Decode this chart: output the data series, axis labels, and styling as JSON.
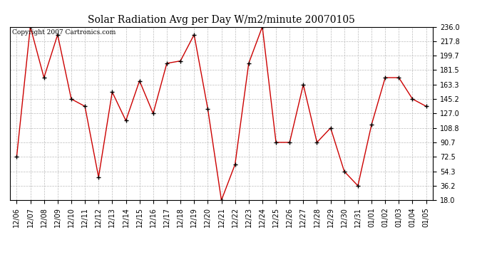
{
  "title": "Solar Radiation Avg per Day W/m2/minute 20070105",
  "copyright": "Copyright 2007 Cartronics.com",
  "x_labels": [
    "12/06",
    "12/07",
    "12/08",
    "12/09",
    "12/10",
    "12/11",
    "12/12",
    "12/13",
    "12/14",
    "12/15",
    "12/16",
    "12/17",
    "12/18",
    "12/19",
    "12/20",
    "12/21",
    "12/22",
    "12/23",
    "12/24",
    "12/25",
    "12/26",
    "12/27",
    "12/28",
    "12/29",
    "12/30",
    "12/31",
    "01/01",
    "01/02",
    "01/03",
    "01/04",
    "01/05"
  ],
  "y_values": [
    72.5,
    236.0,
    172.0,
    226.0,
    145.2,
    136.0,
    47.0,
    154.0,
    118.0,
    168.0,
    127.0,
    190.0,
    193.0,
    226.0,
    133.0,
    18.0,
    63.0,
    190.0,
    236.0,
    90.7,
    90.7,
    163.3,
    90.7,
    108.8,
    54.3,
    36.2,
    113.0,
    172.0,
    172.0,
    145.2,
    136.0
  ],
  "y_ticks": [
    18.0,
    36.2,
    54.3,
    72.5,
    90.7,
    108.8,
    127.0,
    145.2,
    163.3,
    181.5,
    199.7,
    217.8,
    236.0
  ],
  "y_min": 18.0,
  "y_max": 236.0,
  "line_color": "#cc0000",
  "marker": "+",
  "marker_size": 5,
  "marker_color": "#000000",
  "bg_color": "#ffffff",
  "plot_bg_color": "#ffffff",
  "grid_color": "#bbbbbb",
  "title_fontsize": 10,
  "copyright_fontsize": 6.5,
  "tick_fontsize": 7,
  "xlabel_fontsize": 7
}
